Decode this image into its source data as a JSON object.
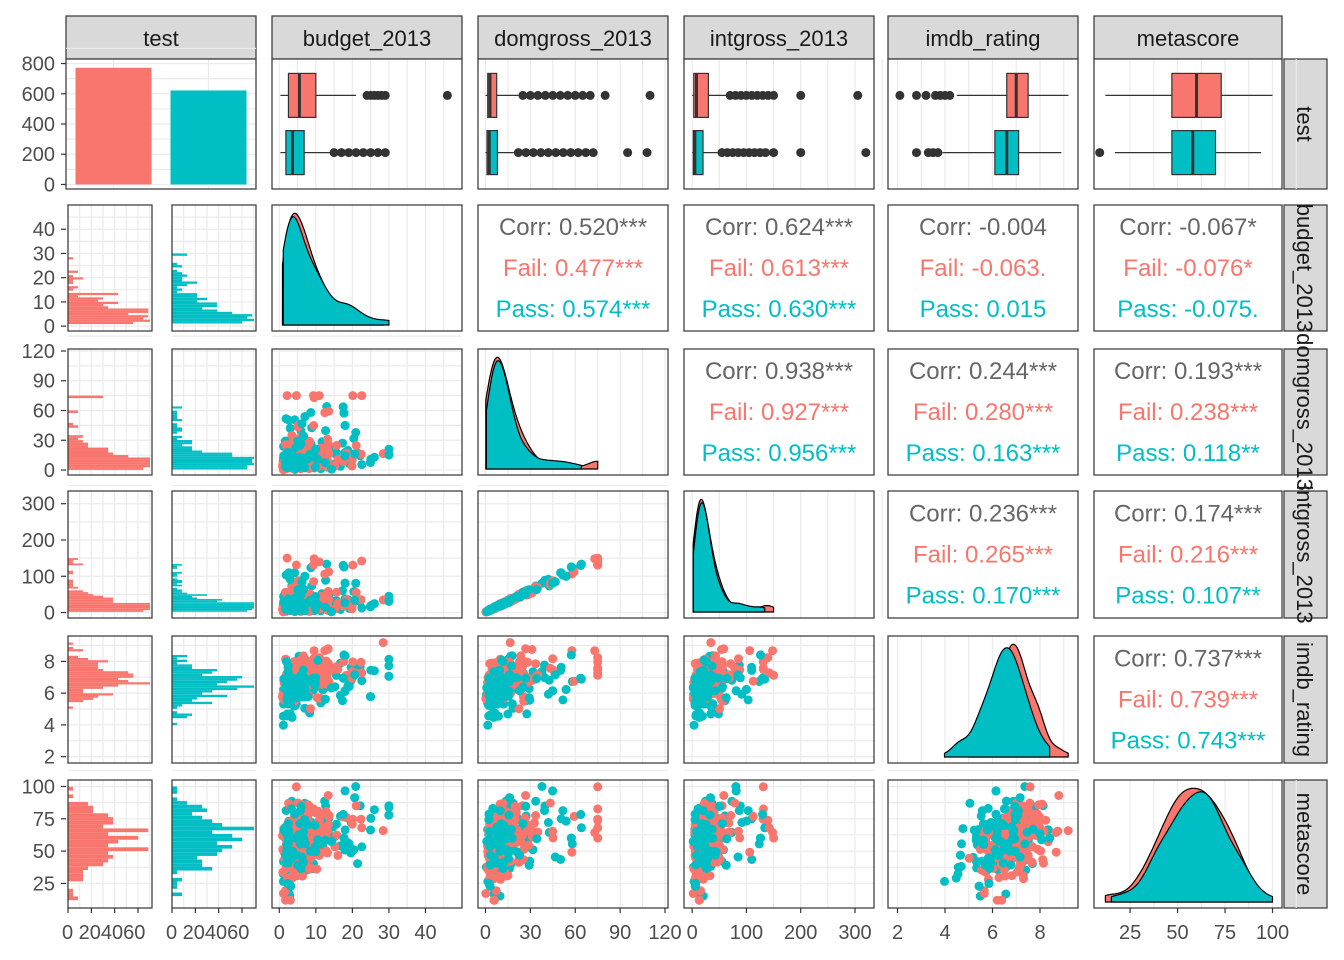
{
  "colors": {
    "fail": "#F8766D",
    "pass": "#00BFC4",
    "overall": "#666666",
    "strip_bg": "#D9D9D9",
    "grid": "#EBEBEB"
  },
  "chart_data": {
    "type": "pairs",
    "variables": [
      "test",
      "budget_2013",
      "domgross_2013",
      "intgross_2013",
      "imdb_rating",
      "metascore"
    ],
    "groups": [
      "Fail",
      "Pass"
    ],
    "axes": {
      "test": {
        "count_ticks": [
          0,
          200,
          400,
          600,
          800
        ],
        "count_range": [
          -30,
          830
        ],
        "hist_ticks_text": "0 204060",
        "hist_ticks": [
          0,
          20,
          40,
          60
        ]
      },
      "budget_2013": {
        "ticks": [
          0,
          10,
          20,
          30,
          40
        ],
        "range": [
          -2,
          50
        ]
      },
      "domgross_2013": {
        "ticks": [
          0,
          30,
          60,
          90,
          120
        ],
        "range": [
          -5,
          122
        ]
      },
      "intgross_2013": {
        "ticks": [
          0,
          100,
          200,
          300
        ],
        "range": [
          -15,
          335
        ]
      },
      "imdb_rating": {
        "ticks": [
          2,
          4,
          6,
          8
        ],
        "range": [
          1.6,
          9.6
        ]
      },
      "metascore": {
        "ticks": [
          25,
          50,
          75,
          100
        ],
        "range": [
          6,
          105
        ]
      }
    },
    "bar_counts": {
      "Fail": 772,
      "Pass": 622
    },
    "correlations": [
      {
        "row": "budget_2013",
        "col": "domgross_2013",
        "corr": "Corr: 0.520***",
        "fail": "Fail: 0.477***",
        "pass": "Pass: 0.574***"
      },
      {
        "row": "budget_2013",
        "col": "intgross_2013",
        "corr": "Corr: 0.624***",
        "fail": "Fail: 0.613***",
        "pass": "Pass: 0.630***"
      },
      {
        "row": "budget_2013",
        "col": "imdb_rating",
        "corr": "Corr: -0.004",
        "fail": "Fail: -0.063.",
        "pass": "Pass: 0.015"
      },
      {
        "row": "budget_2013",
        "col": "metascore",
        "corr": "Corr: -0.067*",
        "fail": "Fail: -0.076*",
        "pass": "Pass: -0.075."
      },
      {
        "row": "domgross_2013",
        "col": "intgross_2013",
        "corr": "Corr: 0.938***",
        "fail": "Fail: 0.927***",
        "pass": "Pass: 0.956***"
      },
      {
        "row": "domgross_2013",
        "col": "imdb_rating",
        "corr": "Corr: 0.244***",
        "fail": "Fail: 0.280***",
        "pass": "Pass: 0.163***"
      },
      {
        "row": "domgross_2013",
        "col": "metascore",
        "corr": "Corr: 0.193***",
        "fail": "Fail: 0.238***",
        "pass": "Pass: 0.118**"
      },
      {
        "row": "intgross_2013",
        "col": "imdb_rating",
        "corr": "Corr: 0.236***",
        "fail": "Fail: 0.265***",
        "pass": "Pass: 0.170***"
      },
      {
        "row": "intgross_2013",
        "col": "metascore",
        "corr": "Corr: 0.174***",
        "fail": "Fail: 0.216***",
        "pass": "Pass: 0.107**"
      },
      {
        "row": "imdb_rating",
        "col": "metascore",
        "corr": "Corr: 0.737***",
        "fail": "Fail: 0.739***",
        "pass": "Pass: 0.743***"
      }
    ],
    "boxplots": {
      "budget_2013": {
        "Fail": [
          0.3,
          2.5,
          5.5,
          10,
          21,
          [
            24,
            25,
            26,
            27,
            28,
            29,
            46
          ]
        ],
        "Pass": [
          0.3,
          1.8,
          3.6,
          6.8,
          14,
          [
            15,
            17,
            19,
            21,
            23,
            25,
            27,
            29
          ]
        ]
      },
      "domgross_2013": {
        "Fail": [
          0,
          1.5,
          3,
          7.5,
          22,
          [
            25,
            30,
            35,
            40,
            45,
            50,
            55,
            60,
            65,
            70,
            80,
            110
          ]
        ],
        "Pass": [
          0,
          1,
          2.5,
          8,
          19,
          [
            22,
            27,
            32,
            37,
            42,
            47,
            52,
            57,
            62,
            67,
            72,
            95,
            108
          ]
        ]
      },
      "intgross_2013": {
        "Fail": [
          0,
          3,
          8,
          30,
          65,
          [
            70,
            80,
            90,
            100,
            110,
            120,
            130,
            140,
            150,
            200,
            305
          ]
        ],
        "Pass": [
          0,
          2,
          5,
          20,
          50,
          [
            55,
            65,
            75,
            85,
            95,
            105,
            115,
            125,
            135,
            150,
            200,
            320
          ]
        ]
      },
      "imdb_rating": {
        "Fail": [
          4.5,
          6.6,
          7,
          7.5,
          9.2,
          [
            2.1,
            2.8,
            3.2,
            3.6,
            3.8,
            4.0,
            4.2
          ]
        ],
        "Pass": [
          3.9,
          6.1,
          6.6,
          7.1,
          8.9,
          [
            2.8,
            3.3,
            3.5,
            3.7
          ]
        ]
      },
      "metascore": {
        "Fail": [
          12,
          47,
          60,
          73,
          100,
          []
        ],
        "Pass": [
          17,
          47,
          58,
          70,
          94,
          [
            9
          ]
        ]
      }
    },
    "scatter_points_per_group": 170
  }
}
